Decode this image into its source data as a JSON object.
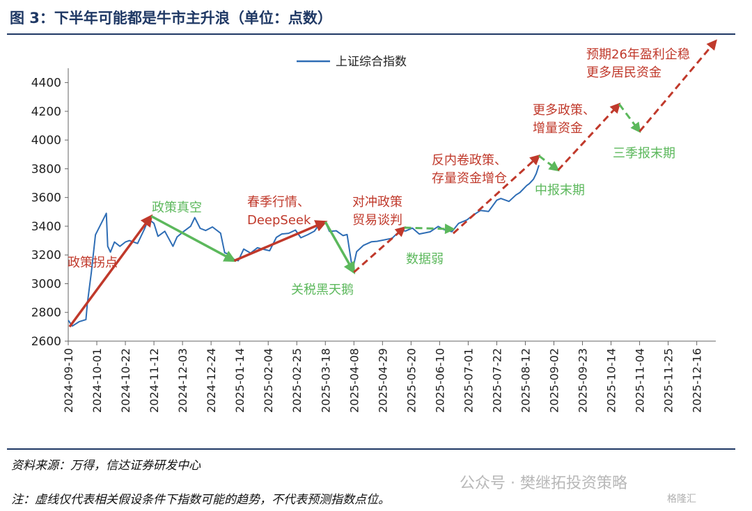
{
  "figure": {
    "title": "图 3：下半年可能都是牛市主升浪（单位：点数）",
    "source": "资料来源：万得，信达证券研发中心",
    "note": "注：虚线仅代表相关假设条件下指数可能的趋势，不代表预测指数点位。",
    "watermark": "公众号 · 樊继拓投资策略",
    "watermark_logo": "格隆汇"
  },
  "colors": {
    "title": "#1f3864",
    "series": "#2e6db5",
    "arrow_red": "#c0392b",
    "arrow_green": "#5cb85c"
  },
  "chart_data": {
    "type": "line",
    "title": "",
    "xlabel": "",
    "ylabel": "",
    "ylim": [
      2600,
      4500
    ],
    "yticks": [
      2600,
      2800,
      3000,
      3200,
      3400,
      3600,
      3800,
      4000,
      4200,
      4400
    ],
    "xticks": [
      "2024-09-10",
      "2024-10-01",
      "2024-10-22",
      "2024-11-12",
      "2024-12-03",
      "2024-12-24",
      "2025-01-14",
      "2025-02-04",
      "2025-02-25",
      "2025-03-18",
      "2025-04-08",
      "2025-04-29",
      "2025-05-20",
      "2025-06-10",
      "2025-07-01",
      "2025-07-22",
      "2025-08-12",
      "2025-09-02",
      "2025-09-23",
      "2025-10-14",
      "2025-11-04",
      "2025-11-25",
      "2025-12-16"
    ],
    "grid": false,
    "legend": "top-center",
    "series": [
      {
        "name": "上证综合指数",
        "points": [
          [
            "2024-09-10",
            2745
          ],
          [
            "2024-09-13",
            2705
          ],
          [
            "2024-09-18",
            2735
          ],
          [
            "2024-09-23",
            2750
          ],
          [
            "2024-09-24",
            2860
          ],
          [
            "2024-09-27",
            3080
          ],
          [
            "2024-09-30",
            3340
          ],
          [
            "2024-10-08",
            3490
          ],
          [
            "2024-10-09",
            3260
          ],
          [
            "2024-10-11",
            3220
          ],
          [
            "2024-10-14",
            3290
          ],
          [
            "2024-10-18",
            3260
          ],
          [
            "2024-10-22",
            3290
          ],
          [
            "2024-10-25",
            3300
          ],
          [
            "2024-10-31",
            3280
          ],
          [
            "2024-11-05",
            3380
          ],
          [
            "2024-11-08",
            3450
          ],
          [
            "2024-11-12",
            3420
          ],
          [
            "2024-11-15",
            3330
          ],
          [
            "2024-11-20",
            3365
          ],
          [
            "2024-11-26",
            3260
          ],
          [
            "2024-11-29",
            3325
          ],
          [
            "2024-12-04",
            3365
          ],
          [
            "2024-12-09",
            3400
          ],
          [
            "2024-12-12",
            3460
          ],
          [
            "2024-12-16",
            3385
          ],
          [
            "2024-12-20",
            3370
          ],
          [
            "2024-12-25",
            3395
          ],
          [
            "2024-12-31",
            3352
          ],
          [
            "2025-01-03",
            3215
          ],
          [
            "2025-01-06",
            3206
          ],
          [
            "2025-01-10",
            3168
          ],
          [
            "2025-01-13",
            3160
          ],
          [
            "2025-01-17",
            3241
          ],
          [
            "2025-01-22",
            3213
          ],
          [
            "2025-01-27",
            3250
          ],
          [
            "2025-02-05",
            3229
          ],
          [
            "2025-02-10",
            3322
          ],
          [
            "2025-02-14",
            3346
          ],
          [
            "2025-02-19",
            3351
          ],
          [
            "2025-02-24",
            3373
          ],
          [
            "2025-02-28",
            3320
          ],
          [
            "2025-03-05",
            3341
          ],
          [
            "2025-03-10",
            3366
          ],
          [
            "2025-03-14",
            3419
          ],
          [
            "2025-03-18",
            3429
          ],
          [
            "2025-03-21",
            3364
          ],
          [
            "2025-03-26",
            3368
          ],
          [
            "2025-03-31",
            3335
          ],
          [
            "2025-04-03",
            3342
          ],
          [
            "2025-04-07",
            3096
          ],
          [
            "2025-04-10",
            3223
          ],
          [
            "2025-04-15",
            3267
          ],
          [
            "2025-04-21",
            3292
          ],
          [
            "2025-04-25",
            3295
          ],
          [
            "2025-05-06",
            3316
          ],
          [
            "2025-05-12",
            3370
          ],
          [
            "2025-05-16",
            3367
          ],
          [
            "2025-05-21",
            3387
          ],
          [
            "2025-05-26",
            3346
          ],
          [
            "2025-06-03",
            3361
          ],
          [
            "2025-06-09",
            3399
          ],
          [
            "2025-06-13",
            3377
          ],
          [
            "2025-06-19",
            3362
          ],
          [
            "2025-06-24",
            3420
          ],
          [
            "2025-06-30",
            3444
          ],
          [
            "2025-07-04",
            3473
          ],
          [
            "2025-07-10",
            3510
          ],
          [
            "2025-07-16",
            3503
          ],
          [
            "2025-07-22",
            3581
          ],
          [
            "2025-07-25",
            3593
          ],
          [
            "2025-07-31",
            3573
          ],
          [
            "2025-08-05",
            3617
          ],
          [
            "2025-08-08",
            3635
          ],
          [
            "2025-08-13",
            3683
          ],
          [
            "2025-08-15",
            3697
          ],
          [
            "2025-08-18",
            3728
          ],
          [
            "2025-08-20",
            3766
          ],
          [
            "2025-08-22",
            3825
          ]
        ]
      }
    ],
    "annotations": [
      {
        "label": "政策拐点",
        "color": "red",
        "style": "solid",
        "from": [
          "2024-09-11",
          2700
        ],
        "to": [
          "2024-11-10",
          3470
        ]
      },
      {
        "label": "政策真空",
        "color": "green",
        "style": "solid",
        "from": [
          "2024-11-10",
          3470
        ],
        "to": [
          "2025-01-10",
          3160
        ]
      },
      {
        "label": "春季行情、\nDeepSeek",
        "color": "red",
        "style": "solid",
        "from": [
          "2025-01-10",
          3160
        ],
        "to": [
          "2025-03-18",
          3430
        ]
      },
      {
        "label": "关税黑天鹅",
        "color": "green",
        "style": "solid",
        "from": [
          "2025-03-18",
          3430
        ],
        "to": [
          "2025-04-08",
          3080
        ]
      },
      {
        "label": "对冲政策\n贸易谈判",
        "color": "red",
        "style": "dashed",
        "from": [
          "2025-04-08",
          3080
        ],
        "to": [
          "2025-05-15",
          3390
        ]
      },
      {
        "label": "数据弱",
        "color": "green",
        "style": "dashed",
        "from": [
          "2025-05-15",
          3390
        ],
        "to": [
          "2025-06-20",
          3380
        ]
      },
      {
        "label": "反内卷政策、\n存量资金增仓",
        "color": "red",
        "style": "dashed",
        "from": [
          "2025-06-20",
          3350
        ],
        "to": [
          "2025-08-22",
          3890
        ]
      },
      {
        "label": "中报末期",
        "color": "green",
        "style": "dashed",
        "from": [
          "2025-08-22",
          3890
        ],
        "to": [
          "2025-09-05",
          3790
        ]
      },
      {
        "label": "更多政策、\n增量资金",
        "color": "red",
        "style": "dashed",
        "from": [
          "2025-09-05",
          3790
        ],
        "to": [
          "2025-10-20",
          4250
        ]
      },
      {
        "label": "三季报末期",
        "color": "green",
        "style": "dashed",
        "from": [
          "2025-10-20",
          4250
        ],
        "to": [
          "2025-11-04",
          4060
        ]
      },
      {
        "label": "预期26年盈利企稳\n更多居民资金",
        "color": "red",
        "style": "dashed",
        "from": [
          "2025-11-04",
          4060
        ],
        "to": [
          "2025-12-30",
          4690
        ]
      }
    ]
  }
}
